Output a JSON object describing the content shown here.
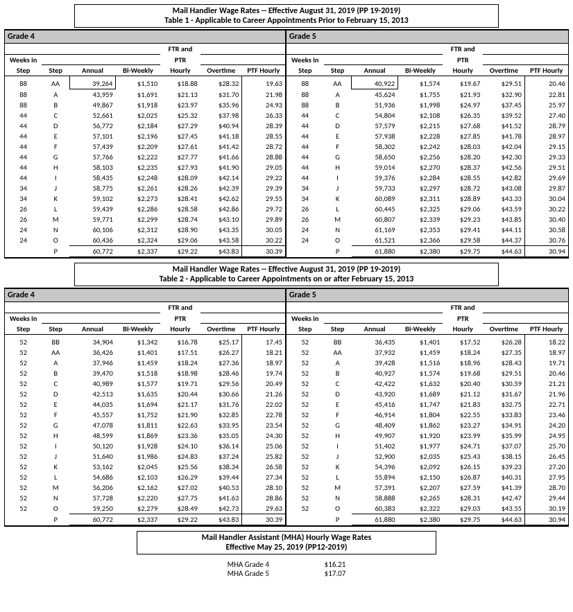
{
  "tables": [
    {
      "title1": "Mail Handler Wage Rates -- Effective August 31, 2019 (PP 19-2019)",
      "title2": "Table 1 - Applicable to Career Appointments Prior to February 15, 2013",
      "grades": [
        {
          "label": "Grade 4",
          "rows": [
            {
              "w": "88",
              "s": "AA",
              "a": "39,264",
              "b": "$1,510",
              "h": "$18.88",
              "o": "$28.32",
              "p": "19.63",
              "box": true
            },
            {
              "w": "88",
              "s": "A",
              "a": "43,959",
              "b": "$1,691",
              "h": "$21.13",
              "o": "$31.70",
              "p": "21.98"
            },
            {
              "w": "88",
              "s": "B",
              "a": "49,867",
              "b": "$1,918",
              "h": "$23.97",
              "o": "$35.96",
              "p": "24.93"
            },
            {
              "w": "44",
              "s": "C",
              "a": "52,661",
              "b": "$2,025",
              "h": "$25.32",
              "o": "$37.98",
              "p": "26.33"
            },
            {
              "w": "44",
              "s": "D",
              "a": "56,772",
              "b": "$2,184",
              "h": "$27.29",
              "o": "$40.94",
              "p": "28.39"
            },
            {
              "w": "44",
              "s": "E",
              "a": "57,101",
              "b": "$2,196",
              "h": "$27.45",
              "o": "$41.18",
              "p": "28.55"
            },
            {
              "w": "44",
              "s": "F",
              "a": "57,439",
              "b": "$2,209",
              "h": "$27.61",
              "o": "$41.42",
              "p": "28.72"
            },
            {
              "w": "44",
              "s": "G",
              "a": "57,766",
              "b": "$2,222",
              "h": "$27.77",
              "o": "$41.66",
              "p": "28.88"
            },
            {
              "w": "44",
              "s": "H",
              "a": "58,103",
              "b": "$2,235",
              "h": "$27.93",
              "o": "$41.90",
              "p": "29.05"
            },
            {
              "w": "44",
              "s": "I",
              "a": "58,435",
              "b": "$2,248",
              "h": "$28.09",
              "o": "$42.14",
              "p": "29.22"
            },
            {
              "w": "34",
              "s": "J",
              "a": "58,775",
              "b": "$2,261",
              "h": "$28.26",
              "o": "$42.39",
              "p": "29.39"
            },
            {
              "w": "34",
              "s": "K",
              "a": "59,102",
              "b": "$2,273",
              "h": "$28.41",
              "o": "$42.62",
              "p": "29.55"
            },
            {
              "w": "26",
              "s": "L",
              "a": "59,439",
              "b": "$2,286",
              "h": "$28.58",
              "o": "$42.86",
              "p": "29.72"
            },
            {
              "w": "26",
              "s": "M",
              "a": "59,771",
              "b": "$2,299",
              "h": "$28.74",
              "o": "$43.10",
              "p": "29.89"
            },
            {
              "w": "24",
              "s": "N",
              "a": "60,106",
              "b": "$2,312",
              "h": "$28.90",
              "o": "$43.35",
              "p": "30.05"
            },
            {
              "w": "24",
              "s": "O",
              "a": "60,436",
              "b": "$2,324",
              "h": "$29.06",
              "o": "$43.58",
              "p": "30.22"
            },
            {
              "w": "",
              "s": "P",
              "a": "60,772",
              "b": "$2,337",
              "h": "$29.22",
              "o": "$43.83",
              "p": "30.39",
              "last": true
            }
          ]
        },
        {
          "label": "Grade 5",
          "rows": [
            {
              "w": "88",
              "s": "AA",
              "a": "40,922",
              "b": "$1,574",
              "h": "$19.67",
              "o": "$29.51",
              "p": "20.46",
              "box": true
            },
            {
              "w": "88",
              "s": "A",
              "a": "45,624",
              "b": "$1,755",
              "h": "$21.93",
              "o": "$32.90",
              "p": "22.81"
            },
            {
              "w": "88",
              "s": "B",
              "a": "51,936",
              "b": "$1,998",
              "h": "$24.97",
              "o": "$37.45",
              "p": "25.97"
            },
            {
              "w": "44",
              "s": "C",
              "a": "54,804",
              "b": "$2,108",
              "h": "$26.35",
              "o": "$39.52",
              "p": "27.40"
            },
            {
              "w": "44",
              "s": "D",
              "a": "57,579",
              "b": "$2,215",
              "h": "$27.68",
              "o": "$41.52",
              "p": "28.79"
            },
            {
              "w": "44",
              "s": "E",
              "a": "57,938",
              "b": "$2,228",
              "h": "$27.85",
              "o": "$41.78",
              "p": "28.97"
            },
            {
              "w": "44",
              "s": "F",
              "a": "58,302",
              "b": "$2,242",
              "h": "$28.03",
              "o": "$42.04",
              "p": "29.15"
            },
            {
              "w": "44",
              "s": "G",
              "a": "58,650",
              "b": "$2,256",
              "h": "$28.20",
              "o": "$42.30",
              "p": "29.33"
            },
            {
              "w": "44",
              "s": "H",
              "a": "59,014",
              "b": "$2,270",
              "h": "$28.37",
              "o": "$42.56",
              "p": "29.51"
            },
            {
              "w": "44",
              "s": "I",
              "a": "59,376",
              "b": "$2,284",
              "h": "$28.55",
              "o": "$42.82",
              "p": "29.69"
            },
            {
              "w": "34",
              "s": "J",
              "a": "59,733",
              "b": "$2,297",
              "h": "$28.72",
              "o": "$43.08",
              "p": "29.87"
            },
            {
              "w": "34",
              "s": "K",
              "a": "60,089",
              "b": "$2,311",
              "h": "$28.89",
              "o": "$43.33",
              "p": "30.04"
            },
            {
              "w": "26",
              "s": "L",
              "a": "60,445",
              "b": "$2,325",
              "h": "$29.06",
              "o": "$43.59",
              "p": "30.22"
            },
            {
              "w": "26",
              "s": "M",
              "a": "60,807",
              "b": "$2,339",
              "h": "$29.23",
              "o": "$43.85",
              "p": "30.40"
            },
            {
              "w": "24",
              "s": "N",
              "a": "61,169",
              "b": "$2,353",
              "h": "$29.41",
              "o": "$44.11",
              "p": "30.58"
            },
            {
              "w": "24",
              "s": "O",
              "a": "61,521",
              "b": "$2,366",
              "h": "$29.58",
              "o": "$44.37",
              "p": "30.76"
            },
            {
              "w": "",
              "s": "P",
              "a": "61,880",
              "b": "$2,380",
              "h": "$29.75",
              "o": "$44.63",
              "p": "30.94",
              "last": true
            }
          ]
        }
      ]
    },
    {
      "title1": "Mail Handler Wage Rates -- Effective August 31, 2019 (PP 19-2019)",
      "title2": "Table 2 - Applicable to Career Appointments on or after February 15, 2013",
      "grades": [
        {
          "label": "Grade 4",
          "rows": [
            {
              "w": "52",
              "s": "BB",
              "a": "34,904",
              "b": "$1,342",
              "h": "$16.78",
              "o": "$25.17",
              "p": "17.45"
            },
            {
              "w": "52",
              "s": "AA",
              "a": "36,426",
              "b": "$1,401",
              "h": "$17.51",
              "o": "$26.27",
              "p": "18.21"
            },
            {
              "w": "52",
              "s": "A",
              "a": "37,946",
              "b": "$1,459",
              "h": "$18.24",
              "o": "$27.36",
              "p": "18.97"
            },
            {
              "w": "52",
              "s": "B",
              "a": "39,470",
              "b": "$1,518",
              "h": "$18.98",
              "o": "$28.46",
              "p": "19.74"
            },
            {
              "w": "52",
              "s": "C",
              "a": "40,989",
              "b": "$1,577",
              "h": "$19.71",
              "o": "$29.56",
              "p": "20.49"
            },
            {
              "w": "52",
              "s": "D",
              "a": "42,513",
              "b": "$1,635",
              "h": "$20.44",
              "o": "$30.66",
              "p": "21.26"
            },
            {
              "w": "52",
              "s": "E",
              "a": "44,035",
              "b": "$1,694",
              "h": "$21.17",
              "o": "$31.76",
              "p": "22.02"
            },
            {
              "w": "52",
              "s": "F",
              "a": "45,557",
              "b": "$1,752",
              "h": "$21.90",
              "o": "$32.85",
              "p": "22.78"
            },
            {
              "w": "52",
              "s": "G",
              "a": "47,078",
              "b": "$1,811",
              "h": "$22.63",
              "o": "$33.95",
              "p": "23.54"
            },
            {
              "w": "52",
              "s": "H",
              "a": "48,599",
              "b": "$1,869",
              "h": "$23.36",
              "o": "$35.05",
              "p": "24.30"
            },
            {
              "w": "52",
              "s": "I",
              "a": "50,120",
              "b": "$1,928",
              "h": "$24.10",
              "o": "$36.14",
              "p": "25.06"
            },
            {
              "w": "52",
              "s": "J",
              "a": "51,640",
              "b": "$1,986",
              "h": "$24.83",
              "o": "$37.24",
              "p": "25.82"
            },
            {
              "w": "52",
              "s": "K",
              "a": "53,162",
              "b": "$2,045",
              "h": "$25.56",
              "o": "$38.34",
              "p": "26.58"
            },
            {
              "w": "52",
              "s": "L",
              "a": "54,686",
              "b": "$2,103",
              "h": "$26.29",
              "o": "$39.44",
              "p": "27.34"
            },
            {
              "w": "52",
              "s": "M",
              "a": "56,206",
              "b": "$2,162",
              "h": "$27.02",
              "o": "$40.53",
              "p": "28.10"
            },
            {
              "w": "52",
              "s": "N",
              "a": "57,728",
              "b": "$2,220",
              "h": "$27.75",
              "o": "$41.63",
              "p": "28.86"
            },
            {
              "w": "52",
              "s": "O",
              "a": "59,250",
              "b": "$2,279",
              "h": "$28.49",
              "o": "$42.73",
              "p": "29.63"
            },
            {
              "w": "",
              "s": "P",
              "a": "60,772",
              "b": "$2,337",
              "h": "$29.22",
              "o": "$43.83",
              "p": "30.39",
              "last": true
            }
          ]
        },
        {
          "label": "Grade 5",
          "rows": [
            {
              "w": "52",
              "s": "BB",
              "a": "36,435",
              "b": "$1,401",
              "h": "$17.52",
              "o": "$26.28",
              "p": "18.22"
            },
            {
              "w": "52",
              "s": "AA",
              "a": "37,932",
              "b": "$1,459",
              "h": "$18.24",
              "o": "$27.35",
              "p": "18.97"
            },
            {
              "w": "52",
              "s": "A",
              "a": "39,428",
              "b": "$1,516",
              "h": "$18.96",
              "o": "$28.43",
              "p": "19.71"
            },
            {
              "w": "52",
              "s": "B",
              "a": "40,927",
              "b": "$1,574",
              "h": "$19.68",
              "o": "$29.51",
              "p": "20.46"
            },
            {
              "w": "52",
              "s": "C",
              "a": "42,422",
              "b": "$1,632",
              "h": "$20.40",
              "o": "$30.59",
              "p": "21.21"
            },
            {
              "w": "52",
              "s": "D",
              "a": "43,920",
              "b": "$1,689",
              "h": "$21.12",
              "o": "$31.67",
              "p": "21.96"
            },
            {
              "w": "52",
              "s": "E",
              "a": "45,416",
              "b": "$1,747",
              "h": "$21.83",
              "o": "$32.75",
              "p": "22.71"
            },
            {
              "w": "52",
              "s": "F",
              "a": "46,914",
              "b": "$1,804",
              "h": "$22.55",
              "o": "$33.83",
              "p": "23.46"
            },
            {
              "w": "52",
              "s": "G",
              "a": "48,409",
              "b": "$1,862",
              "h": "$23.27",
              "o": "$34.91",
              "p": "24.20"
            },
            {
              "w": "52",
              "s": "H",
              "a": "49,907",
              "b": "$1,920",
              "h": "$23.99",
              "o": "$35.99",
              "p": "24.95"
            },
            {
              "w": "52",
              "s": "I",
              "a": "51,402",
              "b": "$1,977",
              "h": "$24.71",
              "o": "$37.07",
              "p": "25.70"
            },
            {
              "w": "52",
              "s": "J",
              "a": "52,900",
              "b": "$2,035",
              "h": "$25.43",
              "o": "$38.15",
              "p": "26.45"
            },
            {
              "w": "52",
              "s": "K",
              "a": "54,396",
              "b": "$2,092",
              "h": "$26.15",
              "o": "$39.23",
              "p": "27.20"
            },
            {
              "w": "52",
              "s": "L",
              "a": "55,894",
              "b": "$2,150",
              "h": "$26.87",
              "o": "$40.31",
              "p": "27.95"
            },
            {
              "w": "52",
              "s": "M",
              "a": "57,391",
              "b": "$2,207",
              "h": "$27.59",
              "o": "$41.39",
              "p": "28.70"
            },
            {
              "w": "52",
              "s": "N",
              "a": "58,888",
              "b": "$2,265",
              "h": "$28.31",
              "o": "$42.47",
              "p": "29.44"
            },
            {
              "w": "52",
              "s": "O",
              "a": "60,383",
              "b": "$2,322",
              "h": "$29.03",
              "o": "$43.55",
              "p": "30.19"
            },
            {
              "w": "",
              "s": "P",
              "a": "61,880",
              "b": "$2,380",
              "h": "$29.75",
              "o": "$44.63",
              "p": "30.94",
              "last": true
            }
          ]
        }
      ]
    }
  ],
  "columns": {
    "weeks": "Weeks in Step",
    "step": "Step",
    "annual": "Annual",
    "biweekly": "Bi-Weekly",
    "hourly1": "FTR and",
    "hourly2": "PTR",
    "hourly3": "Hourly",
    "ot": "Overtime",
    "ptf": "PTF Hourly"
  },
  "mha": {
    "title1": "Mail Handler Assistant (MHA) Hourly Wage Rates",
    "title2": "Effective May 25, 2019 (PP12-2019)",
    "rows": [
      {
        "label": "MHA Grade 4",
        "rate": "$16.21"
      },
      {
        "label": "MHA Grade 5",
        "rate": "$17.07"
      }
    ]
  }
}
